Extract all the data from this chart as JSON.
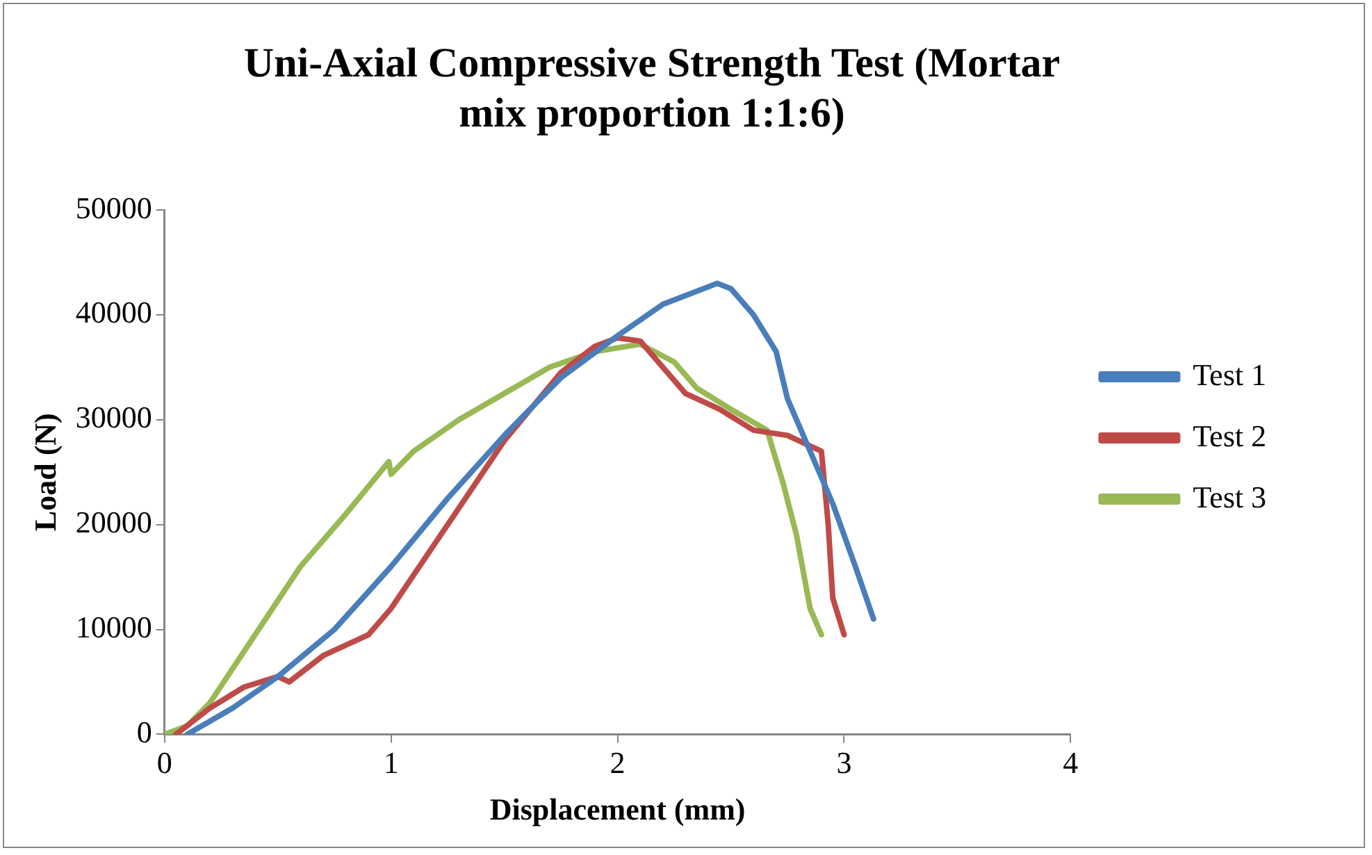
{
  "chart_data": {
    "type": "line",
    "title": "Uni-Axial Compressive Strength Test (Mortar mix proportion 1:1:6)",
    "xlabel": "Displacement (mm)",
    "ylabel": "Load (N)",
    "xlim": [
      0,
      4
    ],
    "xticks": [
      0,
      1,
      2,
      3,
      4
    ],
    "ylim": [
      0,
      50000
    ],
    "yticks": [
      0,
      10000,
      20000,
      30000,
      40000,
      50000
    ],
    "grid": false,
    "legend": "right",
    "marker": "none",
    "line_style": "solid",
    "series": [
      {
        "name": "Test 1",
        "color": "#4a7ebb",
        "x": [
          0.1,
          0.3,
          0.5,
          0.75,
          1,
          1.25,
          1.5,
          1.75,
          2,
          2.2,
          2.44,
          2.5,
          2.6,
          2.7,
          2.75,
          2.85,
          2.95,
          3.05,
          3.13
        ],
        "values": [
          0,
          2500,
          5500,
          10000,
          16000,
          22500,
          28500,
          34000,
          38000,
          41000,
          43000,
          42500,
          40000,
          36500,
          32000,
          27000,
          22000,
          16000,
          11000
        ]
      },
      {
        "name": "Test 2",
        "color": "#be4b48",
        "x": [
          0.05,
          0.2,
          0.35,
          0.5,
          0.55,
          0.7,
          0.9,
          1,
          1.25,
          1.5,
          1.75,
          1.9,
          2,
          2.1,
          2.2,
          2.3,
          2.45,
          2.6,
          2.75,
          2.9,
          2.93,
          2.95,
          3
        ],
        "values": [
          0,
          2500,
          4500,
          5500,
          5000,
          7500,
          9500,
          12000,
          20000,
          28000,
          34500,
          37000,
          37800,
          37500,
          35000,
          32500,
          31000,
          29000,
          28500,
          27000,
          20000,
          13000,
          9500
        ]
      },
      {
        "name": "Test 3",
        "color": "#98b954",
        "x": [
          0,
          0.1,
          0.2,
          0.4,
          0.6,
          0.8,
          0.99,
          1,
          1.1,
          1.3,
          1.5,
          1.7,
          1.9,
          2.1,
          2.25,
          2.35,
          2.5,
          2.66,
          2.73,
          2.79,
          2.85,
          2.9
        ],
        "values": [
          0,
          800,
          3000,
          9500,
          16000,
          21000,
          26000,
          24800,
          27000,
          30000,
          32500,
          35000,
          36500,
          37200,
          35500,
          33000,
          31000,
          29000,
          24000,
          19000,
          12000,
          9500
        ]
      }
    ]
  }
}
